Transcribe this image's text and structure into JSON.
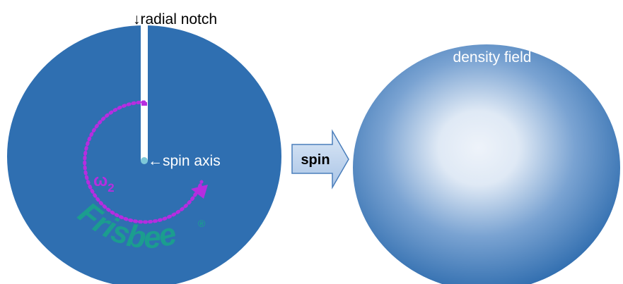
{
  "left_disk": {
    "notch_label": "↓radial notch",
    "axis_label": "←spin axis",
    "omega": "ω",
    "omega_subscript": "2",
    "brand": "Frisbee",
    "brand_mark": "®"
  },
  "arrow": {
    "label": "spin"
  },
  "right_disk": {
    "label": "density field"
  }
}
